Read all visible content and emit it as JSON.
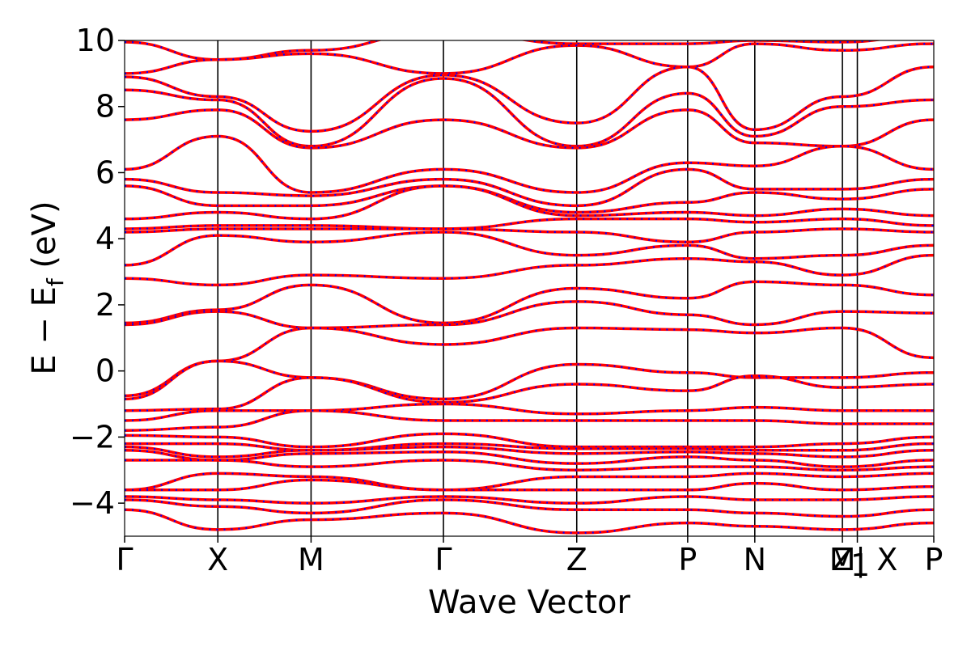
{
  "chart_data": {
    "type": "line",
    "title": "",
    "xlabel": "Wave Vector",
    "ylabel_main": "E − E",
    "ylabel_sub": "f",
    "ylabel_unit": " (eV)",
    "ylim": [
      -5,
      10
    ],
    "yticks": [
      {
        "value": -4,
        "label": "−4"
      },
      {
        "value": -2,
        "label": "−2"
      },
      {
        "value": 0,
        "label": "0"
      },
      {
        "value": 2,
        "label": "2"
      },
      {
        "value": 4,
        "label": "4"
      },
      {
        "value": 6,
        "label": "6"
      },
      {
        "value": 8,
        "label": "8"
      },
      {
        "value": 10,
        "label": "10"
      }
    ],
    "kpath_labels": [
      {
        "k": 0.0,
        "label": "Γ"
      },
      {
        "k": 1.0,
        "label": "X"
      },
      {
        "k": 2.0,
        "label": "M"
      },
      {
        "k": 3.42,
        "label": "Γ"
      },
      {
        "k": 4.85,
        "label": "Z"
      },
      {
        "k": 6.04,
        "label": "P"
      },
      {
        "k": 6.76,
        "label": "N"
      },
      {
        "k": 7.7,
        "label": "Z"
      },
      {
        "k": 7.7,
        "label": "M"
      },
      {
        "k": 7.83,
        "label": "1"
      },
      {
        "k": 7.86,
        "label": "|"
      },
      {
        "k": 8.18,
        "label": "X"
      },
      {
        "k": 8.68,
        "label": "P"
      }
    ],
    "x_range": [
      0,
      8.68
    ],
    "vlines": [
      1.0,
      2.0,
      3.42,
      4.85,
      6.04,
      6.76,
      7.7,
      7.86
    ],
    "series_styles": [
      {
        "color": "#ff0000",
        "style": "solid",
        "width": 3.5
      },
      {
        "color": "#0000ff",
        "style": "dotted",
        "width": 2.2
      }
    ],
    "bands": [
      [
        9.95,
        9.42,
        9.7,
        10.3,
        9.9,
        9.9,
        10.0,
        9.95,
        10.2
      ],
      [
        9.0,
        9.42,
        9.6,
        9.0,
        9.85,
        9.2,
        9.9,
        9.7,
        9.9
      ],
      [
        8.9,
        8.3,
        7.25,
        8.95,
        7.5,
        9.2,
        7.3,
        8.3,
        9.2
      ],
      [
        8.5,
        8.2,
        6.8,
        8.85,
        6.8,
        8.4,
        7.1,
        8.0,
        8.2
      ],
      [
        7.6,
        7.9,
        6.75,
        7.6,
        6.75,
        7.9,
        6.9,
        6.8,
        7.6
      ],
      [
        6.1,
        7.1,
        5.4,
        6.1,
        5.4,
        6.3,
        6.2,
        6.8,
        6.1
      ],
      [
        5.8,
        5.4,
        5.3,
        5.8,
        5.0,
        6.1,
        5.5,
        5.5,
        5.8
      ],
      [
        5.6,
        5.0,
        5.0,
        5.6,
        4.8,
        5.1,
        5.4,
        5.2,
        5.5
      ],
      [
        4.6,
        4.8,
        4.6,
        5.6,
        4.7,
        4.8,
        4.7,
        4.9,
        4.7
      ],
      [
        4.3,
        4.4,
        4.4,
        4.3,
        4.6,
        4.6,
        4.5,
        4.6,
        4.4
      ],
      [
        4.2,
        4.3,
        4.3,
        4.3,
        4.2,
        3.9,
        4.2,
        4.3,
        4.2
      ],
      [
        3.2,
        4.1,
        3.9,
        4.2,
        3.5,
        3.8,
        3.4,
        3.5,
        3.8
      ],
      [
        2.8,
        2.6,
        2.9,
        2.8,
        3.2,
        3.4,
        3.3,
        2.9,
        3.5
      ],
      [
        1.45,
        1.85,
        2.6,
        1.45,
        2.5,
        2.2,
        2.7,
        2.6,
        2.3
      ],
      [
        1.4,
        1.8,
        1.3,
        1.4,
        2.1,
        1.7,
        1.4,
        1.8,
        1.75
      ],
      [
        -0.75,
        0.3,
        1.3,
        0.8,
        1.3,
        1.25,
        1.15,
        1.3,
        0.4
      ],
      [
        -0.85,
        0.3,
        -0.2,
        -0.85,
        0.2,
        -0.05,
        -0.2,
        -0.2,
        -0.05
      ],
      [
        -1.2,
        -1.15,
        -0.2,
        -0.95,
        -0.4,
        -0.6,
        -0.15,
        -0.5,
        -0.4
      ],
      [
        -1.5,
        -1.2,
        -1.2,
        -1.0,
        -1.3,
        -1.2,
        -1.1,
        -1.2,
        -1.2
      ],
      [
        -1.8,
        -1.7,
        -1.2,
        -1.5,
        -1.5,
        -1.5,
        -1.5,
        -1.6,
        -1.6
      ],
      [
        -1.95,
        -2.0,
        -2.3,
        -1.9,
        -2.3,
        -2.3,
        -2.3,
        -2.2,
        -2.0
      ],
      [
        -2.2,
        -2.2,
        -2.4,
        -2.2,
        -2.35,
        -2.35,
        -2.4,
        -2.4,
        -2.2
      ],
      [
        -2.3,
        -2.6,
        -2.4,
        -2.3,
        -2.5,
        -2.45,
        -2.5,
        -2.6,
        -2.4
      ],
      [
        -2.4,
        -2.7,
        -2.5,
        -2.45,
        -2.8,
        -2.6,
        -2.7,
        -2.9,
        -2.7
      ],
      [
        -2.7,
        -2.7,
        -2.9,
        -2.7,
        -3.0,
        -2.9,
        -2.9,
        -3.0,
        -2.9
      ],
      [
        -3.6,
        -3.1,
        -3.2,
        -3.6,
        -3.2,
        -3.2,
        -3.1,
        -3.2,
        -3.1
      ],
      [
        -3.6,
        -3.6,
        -3.3,
        -3.6,
        -3.6,
        -3.6,
        -3.4,
        -3.6,
        -3.5
      ],
      [
        -3.8,
        -3.9,
        -4.0,
        -3.8,
        -4.0,
        -3.8,
        -3.9,
        -3.9,
        -3.8
      ],
      [
        -3.9,
        -4.1,
        -4.3,
        -3.9,
        -4.2,
        -4.2,
        -4.3,
        -4.4,
        -4.2
      ],
      [
        -4.2,
        -4.8,
        -4.5,
        -4.3,
        -4.9,
        -4.6,
        -4.7,
        -4.8,
        -4.6
      ]
    ]
  }
}
